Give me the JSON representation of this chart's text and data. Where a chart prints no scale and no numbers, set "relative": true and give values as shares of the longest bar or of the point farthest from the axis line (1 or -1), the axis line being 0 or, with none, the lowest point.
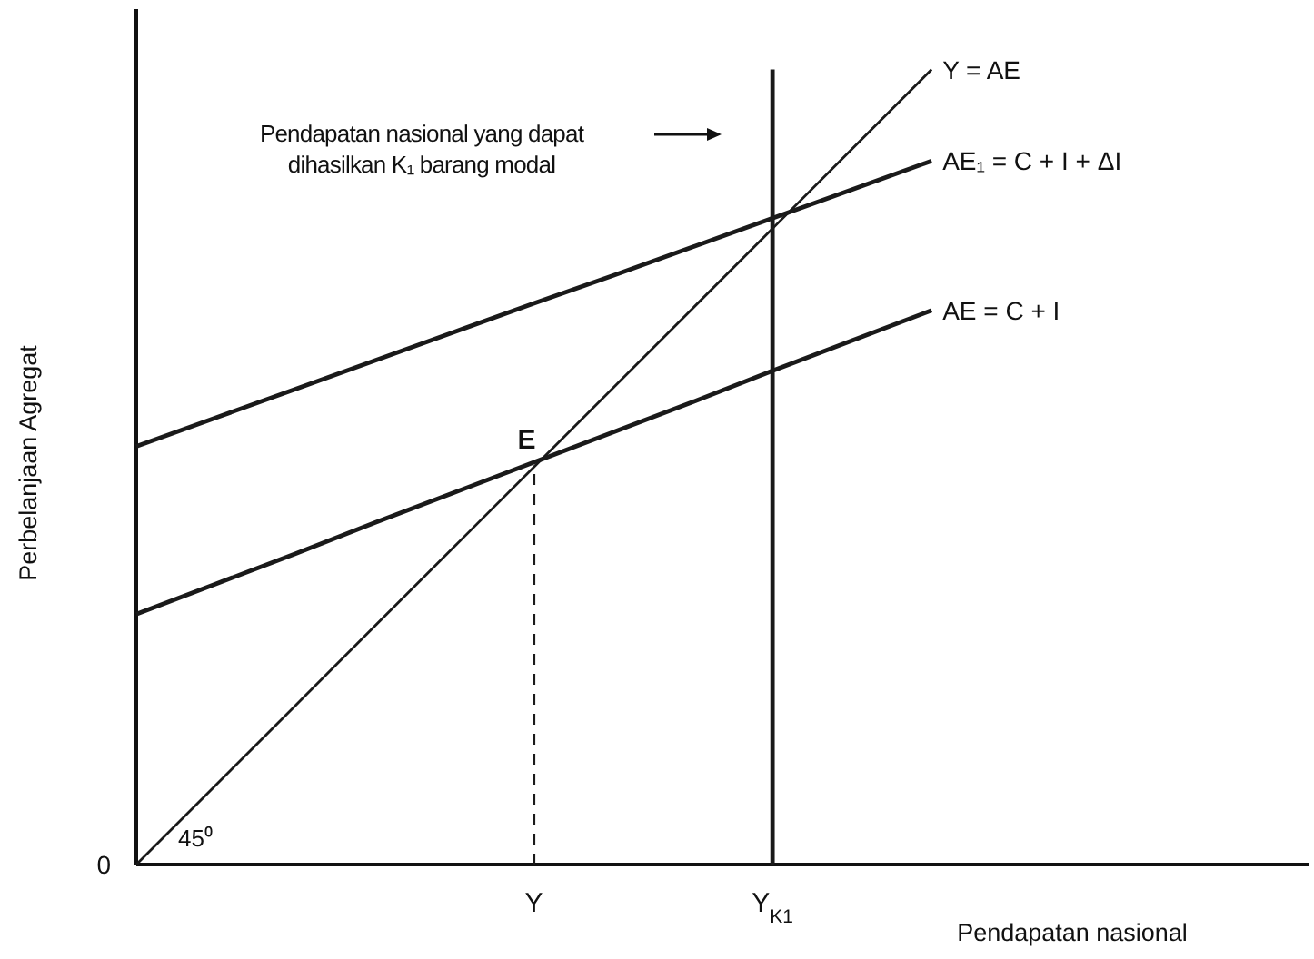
{
  "chart_data": {
    "type": "line",
    "relative": true,
    "xlabel": "Pendapatan nasional",
    "ylabel": "Perbelanjaan Agregat",
    "categories": [
      null,
      null,
      null,
      null,
      null,
      "Y",
      null,
      null,
      "Y$_{K1}$",
      null,
      null,
      null,
      null,
      null,
      null
    ],
    "legend": false,
    "series": [
      {
        "name": "Y = AE",
        "color": "#1a1a1a",
        "values": [
          0,
          0.1,
          0.2,
          0.3,
          0.4,
          0.5,
          0.6,
          0.7,
          0.8,
          0.9,
          1.0,
          null,
          null,
          null,
          null
        ]
      },
      {
        "name": "AE₁ = C + I + ΔI",
        "color": "#1a1a1a",
        "values": [
          0.526,
          0.562,
          0.598,
          0.634,
          0.67,
          0.706,
          0.741,
          0.777,
          0.813,
          0.849,
          0.885,
          null,
          null,
          null,
          null
        ]
      },
      {
        "name": "AE = C + I",
        "color": "#1a1a1a",
        "values": [
          0.315,
          0.353,
          0.391,
          0.43,
          0.468,
          0.506,
          0.544,
          0.582,
          0.621,
          0.659,
          0.697,
          null,
          null,
          null,
          null
        ]
      }
    ],
    "ref_lines": [
      {
        "axis": "x",
        "value": "Y$_{K1}$",
        "color": "#1a1a1a",
        "line_style": "solid"
      },
      {
        "axis": "x",
        "value": "Y",
        "color": "#1a1a1a",
        "line_style": "dashed"
      }
    ],
    "annotations": [
      "Pendapatan nasional yang dapat dihasilkan K₁ barang modal",
      {
        "text": "E",
        "x": "Y",
        "y": 0.5
      },
      "45⁰",
      "0"
    ]
  }
}
